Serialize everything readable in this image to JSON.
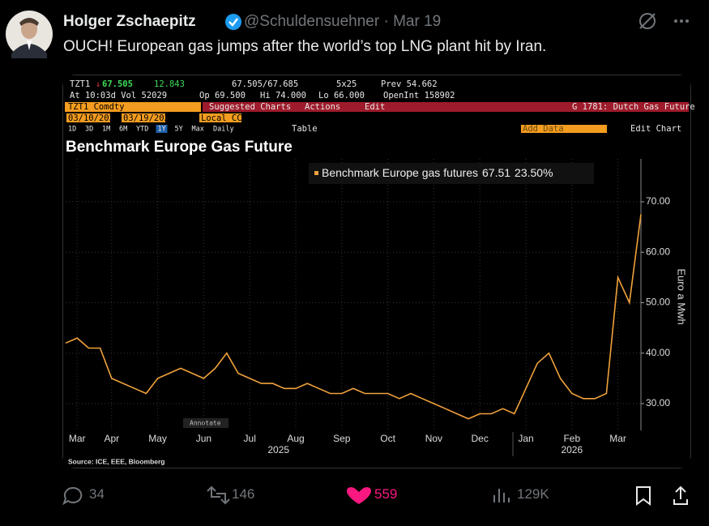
{
  "tweet": {
    "name": "Holger Zschaepitz",
    "handle": "@Schuldensuehner",
    "date": "Mar 19",
    "text": "OUCH! European gas jumps after the world’s top LNG plant hit by Iran.",
    "replies": "34",
    "reposts": "146",
    "likes": "559",
    "views": "129K"
  },
  "terminal": {
    "ticker": "TZT1",
    "last": "67.505",
    "change": "12.843",
    "bid_ask": "67.505/67.685",
    "size": "5x25",
    "prev": "Prev 54.662",
    "time_vol": "At 10:03d Vol 52029",
    "open": "Op 69.500",
    "high": "Hi 74.000",
    "low": "Lo 66.000",
    "open_interest": "OpenInt 158902",
    "security": "TZT1 Comdty",
    "menu": [
      "Suggested Charts",
      "Actions",
      "Edit"
    ],
    "chart_name": "G 1781: Dutch Gas Future",
    "start_date": "03/10/2025",
    "end_date": "03/19/2026",
    "currency": "Local CCY",
    "ranges": [
      "1D",
      "3D",
      "1M",
      "6M",
      "YTD",
      "1Y",
      "5Y",
      "Max"
    ],
    "frequency": "Daily",
    "table": "Table",
    "add_data": "Add Data",
    "edit_chart": "Edit Chart",
    "annotate": "Annotate"
  },
  "chart_data": {
    "type": "line",
    "title": "Benchmark Europe Gas Future",
    "y_label": "Euro a Mwh",
    "source": "Source: ICE, EEE, Bloomberg",
    "categories": [
      null,
      "Mar",
      null,
      null,
      "Apr",
      null,
      null,
      null,
      "May",
      null,
      null,
      null,
      "Jun",
      null,
      null,
      null,
      "Jul",
      null,
      null,
      null,
      "Aug",
      null,
      null,
      null,
      "Sep",
      null,
      null,
      null,
      "Oct",
      null,
      null,
      null,
      "Nov",
      null,
      null,
      null,
      "Dec",
      null,
      null,
      null,
      "Jan",
      null,
      null,
      null,
      "Feb",
      null,
      null,
      null,
      "Mar",
      null,
      null
    ],
    "years": [
      "2025",
      "2026"
    ],
    "series": [
      {
        "name": "Benchmark Europe gas futures",
        "color": "#f0a23c",
        "values": [
          42,
          43,
          41,
          41,
          35,
          34,
          33,
          32,
          35,
          36,
          37,
          36,
          35,
          37,
          40,
          36,
          35,
          34,
          34,
          33,
          33,
          34,
          33,
          32,
          32,
          33,
          32,
          32,
          32,
          31,
          32,
          31,
          30,
          29,
          28,
          27,
          28,
          28,
          29,
          28,
          33,
          38,
          40,
          35,
          32,
          31,
          31,
          32,
          55,
          50,
          67.505
        ],
        "legend_value": "67.51",
        "legend_change": "23.50%"
      }
    ],
    "ylim": [
      24.7,
      78.5
    ],
    "yticks": [
      {
        "value": 30,
        "label": "30.00"
      },
      {
        "value": 40,
        "label": "40.00"
      },
      {
        "value": 50,
        "label": "50.00"
      },
      {
        "value": 60,
        "label": "60.00"
      },
      {
        "value": 70,
        "label": "70.00"
      }
    ],
    "grid": true
  }
}
